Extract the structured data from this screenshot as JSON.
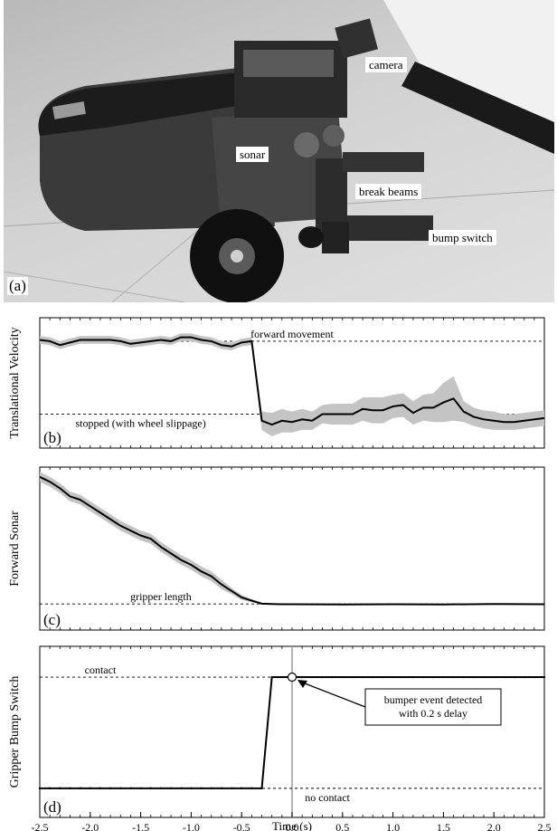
{
  "photo": {
    "panel_label": "(a)",
    "labels": {
      "camera": "camera",
      "sonar": "sonar",
      "break_beams": "break beams",
      "bump_switch": "bump switch"
    }
  },
  "colors": {
    "band": "#c4c4c4",
    "line": "#000000",
    "ref": "#000000",
    "marker_line": "#9a9a9a"
  },
  "chart_data": [
    {
      "type": "line",
      "panel_label": "(b)",
      "ylabel": "Translational Velocity",
      "xlim": [
        -2.5,
        2.5
      ],
      "ylim": [
        0,
        1
      ],
      "reference_lines": [
        {
          "y": 0.82,
          "label": "forward movement",
          "label_x": 0.0
        },
        {
          "y": 0.26,
          "label": "stopped (with wheel slippage)",
          "label_x": -1.5
        }
      ],
      "series": [
        {
          "x": [
            -2.5,
            -2.4,
            -2.3,
            -2.2,
            -2.1,
            -2.0,
            -1.9,
            -1.8,
            -1.7,
            -1.6,
            -1.5,
            -1.4,
            -1.3,
            -1.2,
            -1.1,
            -1.0,
            -0.9,
            -0.8,
            -0.7,
            -0.6,
            -0.5,
            -0.4,
            -0.3,
            -0.2,
            -0.1,
            0.0,
            0.1,
            0.2,
            0.3,
            0.4,
            0.5,
            0.6,
            0.7,
            0.8,
            0.9,
            1.0,
            1.1,
            1.2,
            1.3,
            1.4,
            1.5,
            1.6,
            1.7,
            1.8,
            1.9,
            2.0,
            2.1,
            2.2,
            2.3,
            2.4,
            2.5
          ],
          "y": [
            0.83,
            0.82,
            0.79,
            0.81,
            0.83,
            0.83,
            0.83,
            0.83,
            0.82,
            0.8,
            0.81,
            0.82,
            0.83,
            0.82,
            0.85,
            0.85,
            0.83,
            0.82,
            0.79,
            0.78,
            0.81,
            0.82,
            0.21,
            0.18,
            0.21,
            0.2,
            0.22,
            0.21,
            0.26,
            0.26,
            0.26,
            0.26,
            0.3,
            0.29,
            0.29,
            0.32,
            0.33,
            0.27,
            0.31,
            0.31,
            0.35,
            0.38,
            0.28,
            0.24,
            0.22,
            0.21,
            0.2,
            0.2,
            0.21,
            0.22,
            0.23
          ],
          "band": [
            0.03,
            0.03,
            0.03,
            0.03,
            0.03,
            0.03,
            0.03,
            0.03,
            0.03,
            0.03,
            0.03,
            0.03,
            0.03,
            0.03,
            0.03,
            0.03,
            0.03,
            0.03,
            0.03,
            0.03,
            0.03,
            0.03,
            0.07,
            0.09,
            0.09,
            0.08,
            0.08,
            0.07,
            0.07,
            0.08,
            0.08,
            0.08,
            0.09,
            0.1,
            0.1,
            0.09,
            0.09,
            0.09,
            0.1,
            0.11,
            0.15,
            0.17,
            0.08,
            0.07,
            0.07,
            0.07,
            0.06,
            0.06,
            0.06,
            0.06,
            0.06
          ]
        }
      ]
    },
    {
      "type": "line",
      "panel_label": "(c)",
      "ylabel": "Forward Sonar",
      "xlim": [
        -2.5,
        2.5
      ],
      "ylim": [
        0,
        1
      ],
      "reference_lines": [
        {
          "y": 0.16,
          "label": "gripper length",
          "label_x": -1.3
        }
      ],
      "series": [
        {
          "x": [
            -2.5,
            -2.4,
            -2.3,
            -2.2,
            -2.1,
            -2.0,
            -1.9,
            -1.8,
            -1.7,
            -1.6,
            -1.5,
            -1.4,
            -1.3,
            -1.2,
            -1.1,
            -1.0,
            -0.9,
            -0.8,
            -0.7,
            -0.6,
            -0.5,
            -0.4,
            -0.3,
            -0.2,
            -0.1,
            0.0,
            0.5,
            1.0,
            1.5,
            2.0,
            2.5
          ],
          "y": [
            0.94,
            0.91,
            0.87,
            0.82,
            0.8,
            0.76,
            0.72,
            0.68,
            0.64,
            0.61,
            0.58,
            0.56,
            0.51,
            0.47,
            0.43,
            0.4,
            0.36,
            0.33,
            0.28,
            0.24,
            0.2,
            0.18,
            0.162,
            0.16,
            0.158,
            0.158,
            0.157,
            0.158,
            0.157,
            0.16,
            0.158
          ],
          "band": [
            0.03,
            0.03,
            0.03,
            0.03,
            0.03,
            0.03,
            0.03,
            0.03,
            0.03,
            0.03,
            0.03,
            0.03,
            0.03,
            0.03,
            0.03,
            0.03,
            0.03,
            0.03,
            0.03,
            0.02,
            0.015,
            0.01,
            0.005,
            0.003,
            0.003,
            0.003,
            0.003,
            0.003,
            0.003,
            0.003,
            0.003
          ]
        }
      ]
    },
    {
      "type": "line",
      "panel_label": "(d)",
      "ylabel": "Gripper Bump Switch",
      "xlabel": "Time (s)",
      "xlim": [
        -2.5,
        2.5
      ],
      "ylim": [
        0,
        1
      ],
      "xticks": [
        -2.5,
        -2.0,
        -1.5,
        -1.0,
        -0.5,
        0.0,
        0.5,
        1.0,
        1.5,
        2.0,
        2.5
      ],
      "xtick_labels": [
        "-2.5",
        "-2.0",
        "-1.5",
        "-1.0",
        "-0.5",
        "0.0",
        "0.5",
        "1.0",
        "1.5",
        "2.0",
        "2.5"
      ],
      "vertical_marker": 0.0,
      "reference_lines": [
        {
          "y": 0.82,
          "label": "contact",
          "label_x": -1.9
        },
        {
          "y": 0.17,
          "label": "no contact",
          "label_x": 0.35
        }
      ],
      "series": [
        {
          "x": [
            -2.5,
            -0.3,
            -0.2,
            2.5
          ],
          "y": [
            0.17,
            0.17,
            0.82,
            0.82
          ],
          "band": [
            0,
            0,
            0,
            0
          ]
        }
      ],
      "event_point": {
        "x": 0.0,
        "y": 0.82
      },
      "annotation": {
        "lines": [
          "bumper event detected",
          "with 0.2 s delay"
        ]
      }
    }
  ]
}
